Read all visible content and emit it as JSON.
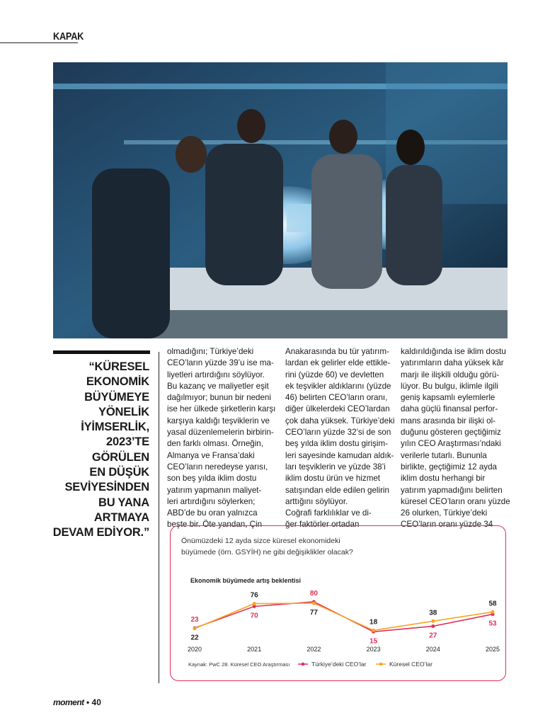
{
  "header": {
    "section": "KAPAK"
  },
  "quote": {
    "lines": [
      "“KÜRESEL",
      "EKONOMİK",
      "BÜYÜMEYE",
      "YÖNELİK",
      "İYİMSERLİK,",
      "2023’TE",
      "GÖRÜLEN",
      "EN DÜŞÜK",
      "SEVİYESİNDEN",
      "BU YANA",
      "ARTMAYA",
      "DEVAM EDİYOR.”"
    ]
  },
  "columns": [
    {
      "lines": [
        "olmadığını; Türkiye’deki",
        "CEO’ların yüzde 39’u ise ma-",
        "liyetleri artırdığını söylüyor.",
        "Bu kazanç ve maliyetler eşit",
        "dağılmıyor; bunun bir nedeni",
        "ise her ülkede şirketlerin karşı",
        "karşıya kaldığı teşviklerin ve",
        "yasal düzenlemelerin birbirin-",
        "den farklı olması. Örneğin,",
        "Almanya ve Fransa’daki",
        "CEO’ların neredeyse yarısı,",
        "son beş yılda iklim dostu",
        "yatırım yapmanın maliyet-",
        "leri artırdığını söylerken;",
        "ABD’de bu oran yalnızca",
        "beşte bir. Öte yandan, Çin"
      ]
    },
    {
      "lines": [
        "Anakarasında bu tür yatırım-",
        "lardan ek gelirler elde ettikle-",
        "rini (yüzde 60) ve devletten",
        "ek teşvikler aldıklarını (yüzde",
        "46) belirten CEO’ların oranı,",
        "diğer ülkelerdeki CEO’lardan",
        "çok daha yüksek. Türkiye’deki",
        "CEO’ların yüzde 32’si de son",
        "beş yılda iklim dostu girişim-",
        "leri sayesinde kamudan aldık-",
        "ları teşviklerin ve yüzde 38’i",
        "iklim dostu ürün ve hizmet",
        "satışından elde edilen gelirin",
        "arttığını söylüyor.",
        "Coğrafi farklılıklar ve di-",
        "ğer faktörler ortadan"
      ]
    },
    {
      "lines": [
        "kaldırıldığında ise iklim dostu",
        "yatırımların daha yüksek kâr",
        "marjı ile ilişkili olduğu görü-",
        "lüyor. Bu bulgu, iklimle ilgili",
        "geniş kapsamlı eylemlerle",
        "daha güçlü finansal perfor-",
        "mans arasında bir ilişki ol-",
        "duğunu gösteren geçtiğimiz",
        "yılın CEO Araştırması’ndaki",
        "verilerle tutarlı. Bununla",
        "birlikte, geçtiğimiz 12 ayda",
        "iklim dostu herhangi bir",
        "yatırım yapmadığını belirten",
        "küresel CEO’ların oranı yüzde",
        "26 olurken, Türkiye’deki",
        "CEO’ların oranı yüzde 34"
      ]
    }
  ],
  "chart_data": {
    "type": "line",
    "title": [
      "Önümüzdeki 12 ayda sizce küresel ekonomideki",
      "büyümede (örn. GSYİH) ne gibi değişiklikler olacak?"
    ],
    "subtitle": "Ekonomik büyümede artış beklentisi",
    "source": "Kaynak: PwC 28. Küresel CEO Araştırması",
    "categories": [
      "2020",
      "2021",
      "2022",
      "2023",
      "2024",
      "2025"
    ],
    "ylim": [
      0,
      100
    ],
    "series": [
      {
        "name": "Türkiye’deki CEO’lar",
        "color": "#e0305a",
        "label_color": "#e0305a",
        "values": [
          23,
          70,
          80,
          15,
          27,
          53
        ]
      },
      {
        "name": "Küresel CEO’lar",
        "color": "#f5a623",
        "label_color": "#222222",
        "values": [
          22,
          76,
          77,
          18,
          38,
          58
        ]
      }
    ]
  },
  "footer": {
    "brand": "moment",
    "page": "• 40"
  }
}
